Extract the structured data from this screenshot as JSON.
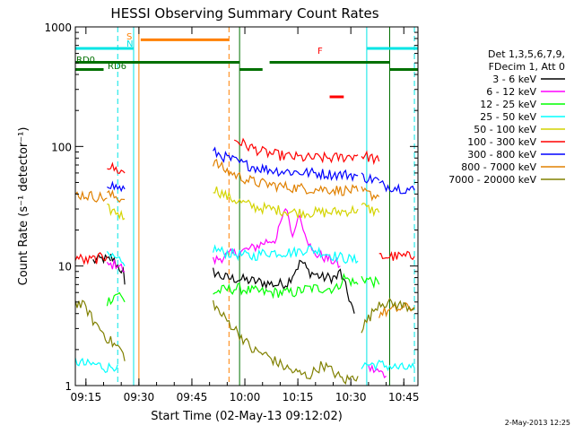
{
  "chart_data": {
    "type": "line",
    "title": "HESSI Observing Summary Count Rates",
    "xlabel": "Start Time (02-May-13 09:12:02)",
    "ylabel": "Count Rate (s⁻¹ detector⁻¹)",
    "footer": "2-May-2013 12:25",
    "x_unit": "minutes after 09:12:02",
    "xlim": [
      0,
      97
    ],
    "ylim": [
      1,
      1000
    ],
    "y_scale": "log",
    "x_ticks": [
      {
        "value": 3,
        "label": "09:15"
      },
      {
        "value": 18,
        "label": "09:30"
      },
      {
        "value": 33,
        "label": "09:45"
      },
      {
        "value": 48,
        "label": "10:00"
      },
      {
        "value": 63,
        "label": "10:15"
      },
      {
        "value": 78,
        "label": "10:30"
      },
      {
        "value": 93,
        "label": "10:45"
      }
    ],
    "y_ticks": [
      {
        "value": 1,
        "label": "1"
      },
      {
        "value": 10,
        "label": "10"
      },
      {
        "value": 100,
        "label": "100"
      },
      {
        "value": 1000,
        "label": "1000"
      }
    ],
    "grid": false,
    "legend_position": "right",
    "legend_header": [
      "Det 1,3,5,6,7,9,",
      "FDecim 1, Att 0"
    ],
    "series": [
      {
        "name": "3 - 6 keV",
        "color": "#000000",
        "segments": [
          [
            [
              5,
              11
            ],
            [
              8,
              11.5
            ],
            [
              10,
              11
            ]
          ],
          [
            [
              10,
              12
            ],
            [
              12,
              10
            ],
            [
              13.5,
              9
            ],
            [
              14,
              7
            ]
          ],
          [
            [
              39,
              9
            ],
            [
              42,
              8
            ],
            [
              46,
              7.8
            ],
            [
              50,
              7.5
            ],
            [
              54,
              7.2
            ],
            [
              57,
              7
            ],
            [
              60,
              7.2
            ],
            [
              62,
              9
            ],
            [
              64,
              11
            ],
            [
              66,
              9
            ],
            [
              70,
              8
            ],
            [
              74,
              8
            ],
            [
              75,
              9
            ],
            [
              77,
              6
            ],
            [
              79,
              4
            ]
          ]
        ]
      },
      {
        "name": "6 - 12 keV",
        "color": "#ff00ff",
        "segments": [
          [
            [
              9,
              10
            ],
            [
              12,
              10.5
            ],
            [
              14,
              9
            ]
          ],
          [
            [
              39,
              11
            ],
            [
              42,
              12
            ],
            [
              46,
              13
            ],
            [
              50,
              14
            ],
            [
              54,
              16
            ],
            [
              57,
              17
            ],
            [
              58.5,
              25
            ],
            [
              60,
              30
            ],
            [
              61,
              20
            ],
            [
              62,
              18
            ],
            [
              63,
              28
            ],
            [
              65,
              20
            ],
            [
              67,
              13
            ],
            [
              70,
              12
            ],
            [
              73,
              11
            ],
            [
              75,
              10
            ]
          ],
          [
            [
              83,
              1.4
            ],
            [
              86,
              1.3
            ],
            [
              88,
              1.2
            ]
          ]
        ]
      },
      {
        "name": "12 - 25 keV",
        "color": "#00ff00",
        "segments": [
          [
            [
              9,
              5
            ],
            [
              12,
              6
            ],
            [
              14,
              5
            ]
          ],
          [
            [
              39,
              6
            ],
            [
              42,
              6.3
            ],
            [
              46,
              6.5
            ],
            [
              50,
              6.2
            ],
            [
              54,
              6
            ],
            [
              58,
              6
            ],
            [
              62,
              6
            ],
            [
              66,
              6.5
            ],
            [
              70,
              6.5
            ],
            [
              74,
              6.5
            ],
            [
              76,
              8
            ],
            [
              80,
              7
            ]
          ],
          [
            [
              81,
              8
            ],
            [
              84,
              7.5
            ],
            [
              86,
              7
            ]
          ]
        ]
      },
      {
        "name": "25 - 50 keV",
        "color": "#00ffff",
        "segments": [
          [
            [
              0,
              1.6
            ],
            [
              3,
              1.5
            ],
            [
              6,
              1.5
            ],
            [
              9,
              1.4
            ],
            [
              12,
              1.5
            ]
          ],
          [
            [
              9,
              12
            ],
            [
              12,
              11
            ],
            [
              14,
              10
            ]
          ],
          [
            [
              39,
              14
            ],
            [
              42,
              13
            ],
            [
              46,
              12.5
            ],
            [
              50,
              12
            ],
            [
              54,
              13
            ],
            [
              58,
              13
            ],
            [
              62,
              13
            ],
            [
              66,
              14
            ],
            [
              70,
              13
            ],
            [
              74,
              12
            ],
            [
              77,
              11.5
            ],
            [
              80,
              11
            ]
          ],
          [
            [
              81,
              1.5
            ],
            [
              86,
              1.5
            ],
            [
              92,
              1.4
            ],
            [
              96,
              1.4
            ]
          ]
        ]
      },
      {
        "name": "50 - 100 keV",
        "color": "#d4d400",
        "segments": [
          [
            [
              9,
              30
            ],
            [
              12,
              28
            ],
            [
              14,
              25
            ]
          ],
          [
            [
              39,
              45
            ],
            [
              43,
              38
            ],
            [
              47,
              34
            ],
            [
              51,
              31
            ],
            [
              55,
              30
            ],
            [
              59,
              29
            ],
            [
              63,
              28
            ],
            [
              67,
              28
            ],
            [
              71,
              28
            ],
            [
              75,
              28.5
            ],
            [
              78,
              29
            ],
            [
              80,
              30
            ]
          ],
          [
            [
              81,
              32
            ],
            [
              83,
              30
            ],
            [
              86,
              28
            ]
          ]
        ]
      },
      {
        "name": "100 - 300 keV",
        "color": "#ff0000",
        "segments": [
          [
            [
              0,
              12
            ],
            [
              3,
              11
            ],
            [
              6,
              11.5
            ],
            [
              9,
              12
            ]
          ],
          [
            [
              9,
              70
            ],
            [
              11,
              65
            ],
            [
              14,
              60
            ]
          ],
          [
            [
              45,
              115
            ],
            [
              49,
              100
            ],
            [
              53,
              90
            ],
            [
              57,
              85
            ],
            [
              61,
              82
            ],
            [
              65,
              80
            ],
            [
              69,
              80
            ],
            [
              73,
              80
            ],
            [
              77,
              82
            ],
            [
              80,
              85
            ]
          ],
          [
            [
              81,
              85
            ],
            [
              84,
              80
            ],
            [
              86,
              75
            ]
          ],
          [
            [
              86,
              12
            ],
            [
              90,
              12
            ],
            [
              94,
              12
            ],
            [
              96,
              12
            ]
          ]
        ]
      },
      {
        "name": "300 - 800 keV",
        "color": "#0000ff",
        "segments": [
          [
            [
              9,
              50
            ],
            [
              11,
              46
            ],
            [
              14,
              44
            ]
          ],
          [
            [
              39,
              90
            ],
            [
              43,
              80
            ],
            [
              47,
              72
            ],
            [
              51,
              67
            ],
            [
              55,
              64
            ],
            [
              59,
              62
            ],
            [
              63,
              61
            ],
            [
              67,
              60
            ],
            [
              71,
              59
            ],
            [
              75,
              58
            ],
            [
              78,
              58
            ],
            [
              80,
              57
            ]
          ],
          [
            [
              81,
              56
            ],
            [
              83,
              54
            ],
            [
              86,
              52
            ]
          ],
          [
            [
              86,
              48
            ],
            [
              90,
              46
            ],
            [
              94,
              44
            ],
            [
              96,
              43
            ]
          ]
        ]
      },
      {
        "name": "800 - 7000 keV",
        "color": "#e08000",
        "segments": [
          [
            [
              0,
              40
            ],
            [
              3,
              39
            ],
            [
              6,
              38
            ],
            [
              9,
              37
            ]
          ],
          [
            [
              9,
              40
            ],
            [
              11,
              38
            ],
            [
              14,
              36
            ]
          ],
          [
            [
              39,
              75
            ],
            [
              43,
              62
            ],
            [
              47,
              55
            ],
            [
              51,
              50
            ],
            [
              55,
              48
            ],
            [
              59,
              46
            ],
            [
              63,
              45
            ],
            [
              67,
              44
            ],
            [
              71,
              44
            ],
            [
              75,
              43
            ],
            [
              78,
              43
            ],
            [
              80,
              42
            ]
          ],
          [
            [
              81,
              42
            ],
            [
              83,
              40
            ],
            [
              86,
              38
            ]
          ],
          [
            [
              86,
              4
            ],
            [
              90,
              4.3
            ],
            [
              94,
              4.5
            ],
            [
              96,
              4.5
            ]
          ]
        ]
      },
      {
        "name": "7000 - 20000 keV",
        "color": "#808000",
        "segments": [
          [
            [
              0,
              5
            ],
            [
              3,
              4.5
            ],
            [
              5,
              3.5
            ],
            [
              7,
              3
            ],
            [
              9,
              2.5
            ],
            [
              11,
              2.2
            ],
            [
              13,
              2
            ],
            [
              14,
              1.6
            ]
          ],
          [
            [
              39,
              5
            ],
            [
              41,
              4
            ],
            [
              43,
              3.5
            ],
            [
              46,
              2.8
            ],
            [
              50,
              2
            ],
            [
              54,
              1.8
            ],
            [
              58,
              1.5
            ],
            [
              62,
              1.3
            ],
            [
              66,
              1.2
            ],
            [
              70,
              1.5
            ],
            [
              73,
              1.3
            ],
            [
              76,
              1.1
            ],
            [
              80,
              1.2
            ]
          ],
          [
            [
              81,
              3
            ],
            [
              84,
              4
            ],
            [
              86,
              5
            ]
          ],
          [
            [
              86,
              5
            ],
            [
              90,
              4.8
            ],
            [
              94,
              4.6
            ],
            [
              96,
              4.5
            ]
          ]
        ]
      }
    ],
    "markers": [
      {
        "label": "S",
        "color": "#ff8000",
        "x_from": 18.5,
        "x_to": 43.5,
        "level": 780
      },
      {
        "label": "N",
        "color": "#00e5e5",
        "x_from": 0,
        "x_to": 16.5,
        "level": 660
      },
      {
        "label": "N",
        "color": "#00e5e5",
        "x_from": 82.5,
        "x_to": 97,
        "level": 660
      },
      {
        "label": "F",
        "color": "#ff0000",
        "x_from": 72,
        "x_to": 76,
        "level": 260
      },
      {
        "label": "RD0",
        "color": "#007000",
        "x_from": 0,
        "x_to": 46.5,
        "level": 505
      },
      {
        "label": "RD0",
        "color": "#007000",
        "x_from": 55,
        "x_to": 89,
        "level": 505
      },
      {
        "label": "RD6",
        "color": "#007000",
        "x_from": 0,
        "x_to": 8,
        "level": 440
      },
      {
        "label": "RD6",
        "color": "#007000",
        "x_from": 46.5,
        "x_to": 53,
        "level": 440
      },
      {
        "label": "RD6",
        "color": "#007000",
        "x_from": 89,
        "x_to": 97,
        "level": 440
      }
    ],
    "vlines": [
      {
        "x": 18,
        "color": "#ff8000",
        "dash": false
      },
      {
        "x": 43.5,
        "color": "#ff8000",
        "dash": true
      },
      {
        "x": 16.5,
        "color": "#00e5e5",
        "dash": false
      },
      {
        "x": 12,
        "color": "#00e5e5",
        "dash": true
      },
      {
        "x": 82.5,
        "color": "#00e5e5",
        "dash": false
      },
      {
        "x": 96,
        "color": "#00e5e5",
        "dash": true
      },
      {
        "x": 89,
        "color": "#007000",
        "dash": false
      },
      {
        "x": 46.5,
        "color": "#007000",
        "dash": false
      }
    ]
  }
}
